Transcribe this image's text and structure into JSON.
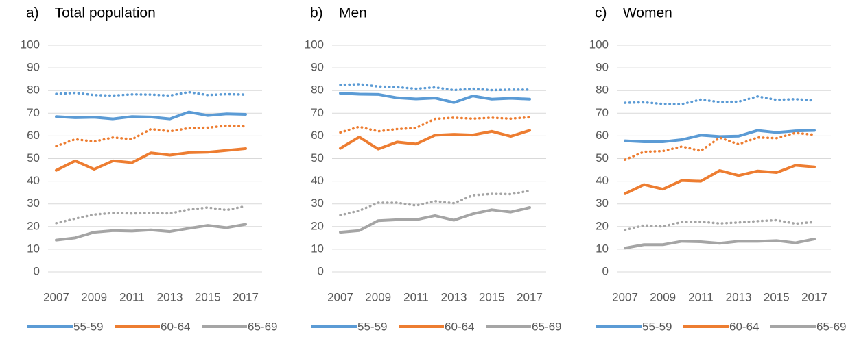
{
  "chart_data": [
    {
      "type": "line",
      "title": "a)    Total population",
      "x": [
        2007,
        2008,
        2009,
        2010,
        2011,
        2012,
        2013,
        2014,
        2015,
        2016,
        2017
      ],
      "xlim": [
        2007,
        2017
      ],
      "xticks": [
        2007,
        2009,
        2011,
        2013,
        2015,
        2017
      ],
      "ylim": [
        0,
        100
      ],
      "yticks": [
        0,
        10,
        20,
        30,
        40,
        50,
        60,
        70,
        80,
        90,
        100
      ],
      "grid": true,
      "legend": "bottom",
      "series": [
        {
          "name": "55-59",
          "color": "#5b9bd5",
          "values": [
            68.5,
            68,
            68.2,
            67.5,
            68.5,
            68.3,
            67.5,
            70.5,
            69,
            69.7,
            69.5
          ]
        },
        {
          "name": "60-64",
          "color": "#ed7d31",
          "values": [
            44.8,
            49,
            45.3,
            49,
            48.2,
            52.5,
            51.5,
            52.6,
            52.8,
            53.6,
            54.4
          ]
        },
        {
          "name": "65-69",
          "color": "#a5a5a5",
          "values": [
            14,
            15,
            17.5,
            18.2,
            18,
            18.5,
            17.8,
            19.2,
            20.5,
            19.5,
            21
          ]
        },
        {
          "color": "#5b9bd5",
          "dash": "dotted",
          "values": [
            78.5,
            79,
            78,
            77.8,
            78.3,
            78.2,
            77.8,
            79.3,
            78,
            78.4,
            78.2
          ]
        },
        {
          "color": "#ed7d31",
          "dash": "dotted",
          "values": [
            55.5,
            58.5,
            57.5,
            59.3,
            58.5,
            63,
            62,
            63.4,
            63.6,
            64.5,
            64.2
          ]
        },
        {
          "color": "#a5a5a5",
          "dash": "dotted",
          "values": [
            21.5,
            23.5,
            25.3,
            26,
            25.8,
            26,
            25.8,
            27.5,
            28.4,
            27.3,
            29
          ]
        }
      ]
    },
    {
      "type": "line",
      "title": "b)    Men",
      "x": [
        2007,
        2008,
        2009,
        2010,
        2011,
        2012,
        2013,
        2014,
        2015,
        2016,
        2017
      ],
      "xlim": [
        2007,
        2017
      ],
      "xticks": [
        2007,
        2009,
        2011,
        2013,
        2015,
        2017
      ],
      "ylim": [
        0,
        100
      ],
      "yticks": [
        0,
        10,
        20,
        30,
        40,
        50,
        60,
        70,
        80,
        90,
        100
      ],
      "grid": true,
      "legend": "bottom",
      "series": [
        {
          "name": "55-59",
          "color": "#5b9bd5",
          "values": [
            78.8,
            78.4,
            78.3,
            76.8,
            76.3,
            76.7,
            74.7,
            77.6,
            76.2,
            76.6,
            76.2
          ]
        },
        {
          "name": "60-64",
          "color": "#ed7d31",
          "values": [
            54.5,
            59.5,
            54.2,
            57.3,
            56.4,
            60.3,
            60.7,
            60.4,
            62,
            59.8,
            62.4
          ]
        },
        {
          "name": "65-69",
          "color": "#a5a5a5",
          "values": [
            17.5,
            18.2,
            22.6,
            23,
            23,
            24.8,
            22.8,
            25.6,
            27.4,
            26.4,
            28.4
          ]
        },
        {
          "color": "#5b9bd5",
          "dash": "dotted",
          "values": [
            82.5,
            82.8,
            81.8,
            81.5,
            80.8,
            81.4,
            80.2,
            80.8,
            80.2,
            80.4,
            80.4
          ]
        },
        {
          "color": "#ed7d31",
          "dash": "dotted",
          "values": [
            61.5,
            64,
            62,
            63,
            63.5,
            67.5,
            68,
            67.6,
            68,
            67.6,
            68.2
          ]
        },
        {
          "color": "#a5a5a5",
          "dash": "dotted",
          "values": [
            25,
            27,
            30.5,
            30.5,
            29.3,
            31.2,
            30.3,
            33.8,
            34.4,
            34.3,
            35.8
          ]
        }
      ]
    },
    {
      "type": "line",
      "title": "c)    Women",
      "x": [
        2007,
        2008,
        2009,
        2010,
        2011,
        2012,
        2013,
        2014,
        2015,
        2016,
        2017
      ],
      "xlim": [
        2007,
        2017
      ],
      "xticks": [
        2007,
        2009,
        2011,
        2013,
        2015,
        2017
      ],
      "ylim": [
        0,
        100
      ],
      "yticks": [
        0,
        10,
        20,
        30,
        40,
        50,
        60,
        70,
        80,
        90,
        100
      ],
      "grid": true,
      "legend": "bottom",
      "series": [
        {
          "name": "55-59",
          "color": "#5b9bd5",
          "values": [
            57.8,
            57.4,
            57.4,
            58.3,
            60.3,
            59.7,
            59.9,
            62.4,
            61.5,
            62.2,
            62.4
          ]
        },
        {
          "name": "60-64",
          "color": "#ed7d31",
          "values": [
            34.5,
            38.5,
            36.5,
            40.3,
            40,
            44.7,
            42.5,
            44.5,
            43.8,
            47,
            46.3
          ]
        },
        {
          "name": "65-69",
          "color": "#a5a5a5",
          "values": [
            10.5,
            12,
            12,
            13.5,
            13.3,
            12.6,
            13.5,
            13.5,
            13.8,
            12.8,
            14.5
          ]
        },
        {
          "color": "#5b9bd5",
          "dash": "dotted",
          "values": [
            74.6,
            74.8,
            74.1,
            74,
            76,
            74.9,
            75.1,
            77.4,
            75.9,
            76.2,
            75.6
          ]
        },
        {
          "color": "#ed7d31",
          "dash": "dotted",
          "values": [
            49.5,
            53,
            53.3,
            55.3,
            53.4,
            59.2,
            56.3,
            59.3,
            59,
            61.3,
            60.5
          ]
        },
        {
          "color": "#a5a5a5",
          "dash": "dotted",
          "values": [
            18.5,
            20.5,
            20,
            22,
            22.1,
            21.4,
            21.8,
            22.4,
            22.8,
            21.3,
            22
          ]
        }
      ]
    }
  ]
}
